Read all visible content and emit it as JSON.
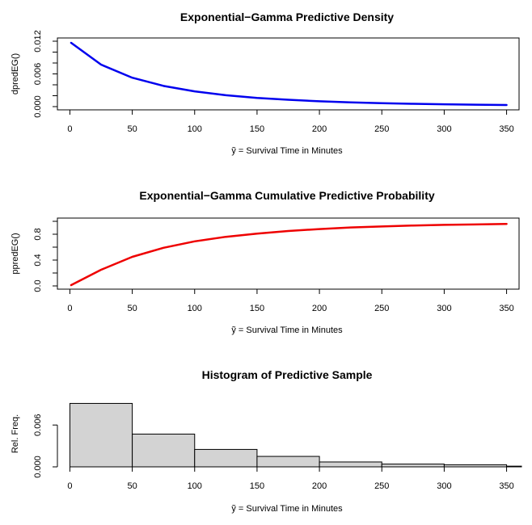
{
  "chart_data": [
    {
      "type": "line",
      "title": "Exponential−Gamma Predictive Density",
      "xlabel": "ỹ = Survival Time in Minutes",
      "ylabel": "dpredEG()",
      "xlim": [
        -10,
        360
      ],
      "ylim": [
        0,
        0.012
      ],
      "x_ticks": [
        "0",
        "50",
        "100",
        "150",
        "200",
        "250",
        "300",
        "350"
      ],
      "x_tick_values": [
        0,
        50,
        100,
        150,
        200,
        250,
        300,
        350
      ],
      "y_ticks": [
        "0.000",
        "0.002",
        "0.004",
        "0.006",
        "0.008",
        "0.010",
        "0.012"
      ],
      "y_tick_labels_shown": [
        "0.000",
        "0.006",
        "0.012"
      ],
      "y_tick_values": [
        0,
        0.002,
        0.004,
        0.006,
        0.008,
        0.01,
        0.012
      ],
      "color": "#0000ee",
      "series": [
        {
          "name": "density",
          "x": [
            1,
            25,
            50,
            75,
            100,
            125,
            150,
            175,
            200,
            225,
            250,
            275,
            300,
            325,
            350
          ],
          "y": [
            0.0117,
            0.0077,
            0.0053,
            0.0038,
            0.0028,
            0.0021,
            0.0016,
            0.00125,
            0.00098,
            0.00078,
            0.00063,
            0.00051,
            0.00042,
            0.00035,
            0.00029
          ]
        }
      ]
    },
    {
      "type": "line",
      "title": "Exponential−Gamma Cumulative Predictive Probability",
      "xlabel": "ỹ = Survival Time in Minutes",
      "ylabel": "ppredEG()",
      "xlim": [
        -10,
        360
      ],
      "ylim": [
        0,
        1
      ],
      "x_ticks": [
        "0",
        "50",
        "100",
        "150",
        "200",
        "250",
        "300",
        "350"
      ],
      "x_tick_values": [
        0,
        50,
        100,
        150,
        200,
        250,
        300,
        350
      ],
      "y_ticks": [
        "0.0",
        "0.2",
        "0.4",
        "0.6",
        "0.8",
        "1.0"
      ],
      "y_tick_labels_shown": [
        "0.0",
        "0.4",
        "0.8"
      ],
      "y_tick_values": [
        0,
        0.2,
        0.4,
        0.6,
        0.8,
        1.0
      ],
      "color": "#ee0000",
      "series": [
        {
          "name": "cdf",
          "x": [
            1,
            25,
            50,
            75,
            100,
            125,
            150,
            175,
            200,
            225,
            250,
            275,
            300,
            325,
            350
          ],
          "y": [
            0.012,
            0.25,
            0.45,
            0.59,
            0.69,
            0.76,
            0.81,
            0.85,
            0.88,
            0.905,
            0.92,
            0.935,
            0.945,
            0.952,
            0.96
          ]
        }
      ]
    },
    {
      "type": "bar",
      "title": "Histogram of Predictive Sample",
      "xlabel": "ỹ = Survival Time in Minutes",
      "ylabel": "Rel. Freq.",
      "xlim": [
        -10,
        360
      ],
      "ylim": [
        0,
        0.0095
      ],
      "x_ticks": [
        "0",
        "50",
        "100",
        "150",
        "200",
        "250",
        "300",
        "350"
      ],
      "x_tick_values": [
        0,
        50,
        100,
        150,
        200,
        250,
        300,
        350
      ],
      "y_ticks": [
        "0.000",
        "0.006"
      ],
      "y_tick_values": [
        0,
        0.006
      ],
      "bins": [
        {
          "from": 0,
          "to": 50,
          "value": 0.0091
        },
        {
          "from": 50,
          "to": 100,
          "value": 0.0047
        },
        {
          "from": 100,
          "to": 150,
          "value": 0.0025
        },
        {
          "from": 150,
          "to": 200,
          "value": 0.0015
        },
        {
          "from": 200,
          "to": 250,
          "value": 0.0007
        },
        {
          "from": 250,
          "to": 300,
          "value": 0.0004
        },
        {
          "from": 300,
          "to": 350,
          "value": 0.0003
        },
        {
          "from": 350,
          "to": 400,
          "value": 0.0001
        }
      ],
      "bar_color": "#d3d3d3"
    }
  ]
}
